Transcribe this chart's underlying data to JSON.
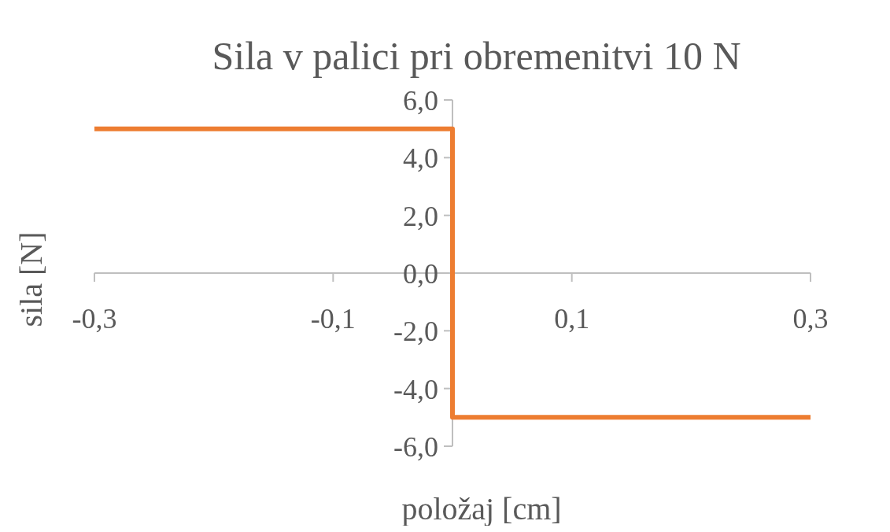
{
  "chart_data": {
    "type": "line",
    "title": "Sila v palici pri obremenitvi 10 N",
    "xlabel": "položaj [cm]",
    "ylabel": "sila [N]",
    "x": [
      -0.3,
      0,
      0,
      0.3
    ],
    "series": [
      {
        "color": "#ed7d31",
        "values": [
          5,
          5,
          -5,
          -5
        ]
      }
    ],
    "xlim": [
      -0.3,
      0.3
    ],
    "xticks": [
      {
        "value": -0.3,
        "label": "-0,3"
      },
      {
        "value": -0.1,
        "label": "-0,1"
      },
      {
        "value": 0.1,
        "label": "0,1"
      },
      {
        "value": 0.3,
        "label": "0,3"
      }
    ],
    "ylim": [
      -6,
      6
    ],
    "yticks": [
      {
        "value": -6,
        "label": "-6,0"
      },
      {
        "value": -4,
        "label": "-4,0"
      },
      {
        "value": -2,
        "label": "-2,0"
      },
      {
        "value": 0,
        "label": "0,0"
      },
      {
        "value": 2,
        "label": "2,0"
      },
      {
        "value": 4,
        "label": "4,0"
      },
      {
        "value": 6,
        "label": "6,0"
      }
    ]
  }
}
